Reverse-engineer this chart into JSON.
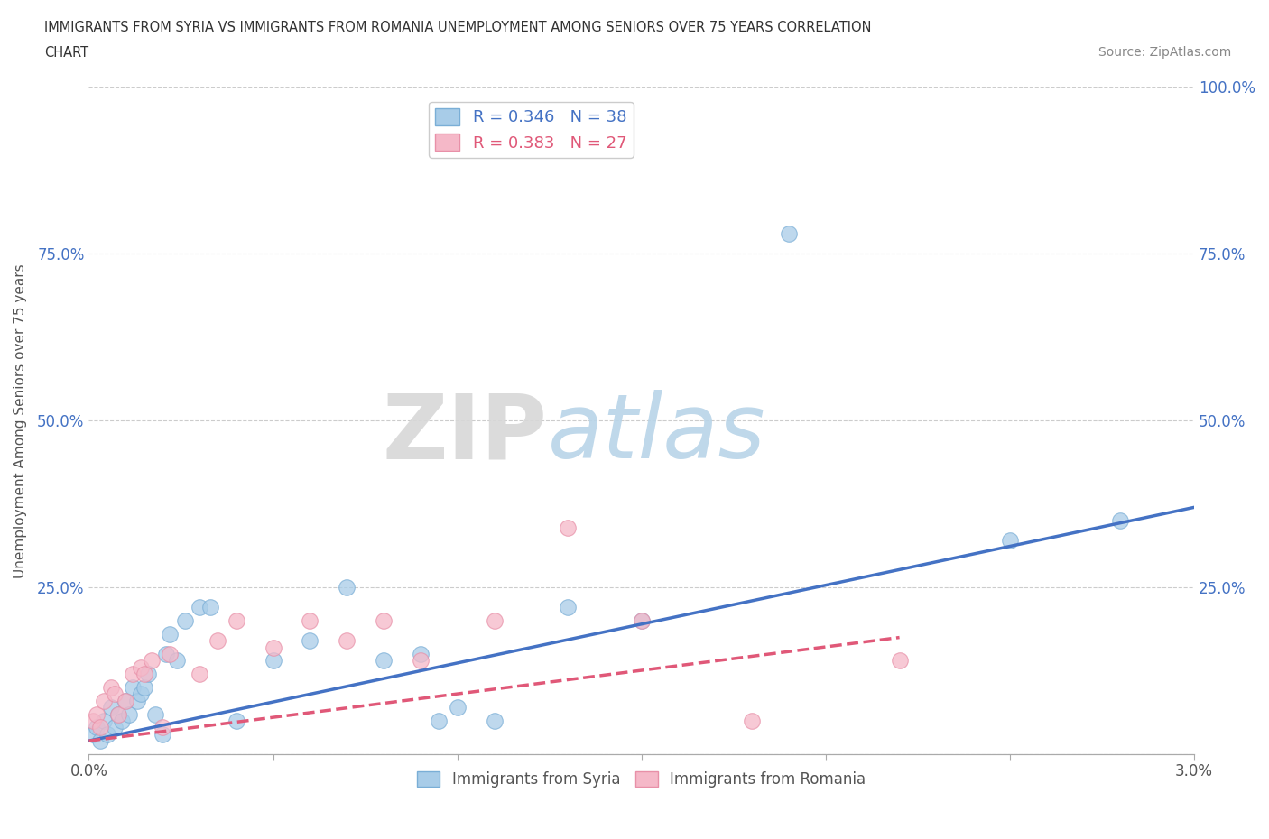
{
  "title_line1": "IMMIGRANTS FROM SYRIA VS IMMIGRANTS FROM ROMANIA UNEMPLOYMENT AMONG SENIORS OVER 75 YEARS CORRELATION",
  "title_line2": "CHART",
  "source": "Source: ZipAtlas.com",
  "ylabel": "Unemployment Among Seniors over 75 years",
  "xlim": [
    0.0,
    0.03
  ],
  "ylim": [
    0.0,
    1.0
  ],
  "xticks": [
    0.0,
    0.005,
    0.01,
    0.015,
    0.02,
    0.025,
    0.03
  ],
  "xtick_labels": [
    "0.0%",
    "",
    "",
    "",
    "",
    "",
    "3.0%"
  ],
  "yticks": [
    0.0,
    0.25,
    0.5,
    0.75,
    1.0
  ],
  "ytick_labels_left": [
    "",
    "25.0%",
    "50.0%",
    "75.0%",
    ""
  ],
  "ytick_labels_right": [
    "",
    "25.0%",
    "50.0%",
    "75.0%",
    "100.0%"
  ],
  "syria_color": "#a8cce8",
  "syria_edge": "#7aaed6",
  "romania_color": "#f5b8c8",
  "romania_edge": "#e890a8",
  "syria_line_color": "#4472c4",
  "romania_line_color": "#e05878",
  "syria_R": 0.346,
  "syria_N": 38,
  "romania_R": 0.383,
  "romania_N": 27,
  "background_color": "#ffffff",
  "grid_color": "#cccccc",
  "watermark_zip": "ZIP",
  "watermark_atlas": "atlas",
  "syria_x": [
    0.0001,
    0.0002,
    0.0003,
    0.0004,
    0.0005,
    0.0006,
    0.0007,
    0.0008,
    0.0009,
    0.001,
    0.0011,
    0.0012,
    0.0013,
    0.0014,
    0.0015,
    0.0016,
    0.0018,
    0.002,
    0.0021,
    0.0022,
    0.0024,
    0.0026,
    0.003,
    0.0033,
    0.004,
    0.005,
    0.006,
    0.007,
    0.008,
    0.009,
    0.0095,
    0.01,
    0.011,
    0.013,
    0.015,
    0.019,
    0.025,
    0.028
  ],
  "syria_y": [
    0.03,
    0.04,
    0.02,
    0.05,
    0.03,
    0.07,
    0.04,
    0.06,
    0.05,
    0.08,
    0.06,
    0.1,
    0.08,
    0.09,
    0.1,
    0.12,
    0.06,
    0.03,
    0.15,
    0.18,
    0.14,
    0.2,
    0.22,
    0.22,
    0.05,
    0.14,
    0.17,
    0.25,
    0.14,
    0.15,
    0.05,
    0.07,
    0.05,
    0.22,
    0.2,
    0.78,
    0.32,
    0.35
  ],
  "romania_x": [
    0.0001,
    0.0002,
    0.0003,
    0.0004,
    0.0006,
    0.0007,
    0.0008,
    0.001,
    0.0012,
    0.0014,
    0.0015,
    0.0017,
    0.002,
    0.0022,
    0.003,
    0.0035,
    0.004,
    0.005,
    0.006,
    0.007,
    0.008,
    0.009,
    0.011,
    0.013,
    0.015,
    0.018,
    0.022
  ],
  "romania_y": [
    0.05,
    0.06,
    0.04,
    0.08,
    0.1,
    0.09,
    0.06,
    0.08,
    0.12,
    0.13,
    0.12,
    0.14,
    0.04,
    0.15,
    0.12,
    0.17,
    0.2,
    0.16,
    0.2,
    0.17,
    0.2,
    0.14,
    0.2,
    0.34,
    0.2,
    0.05,
    0.14
  ],
  "syria_line_x": [
    0.0,
    0.03
  ],
  "syria_line_y": [
    0.02,
    0.37
  ],
  "romania_line_x": [
    0.0,
    0.022
  ],
  "romania_line_y": [
    0.02,
    0.175
  ]
}
